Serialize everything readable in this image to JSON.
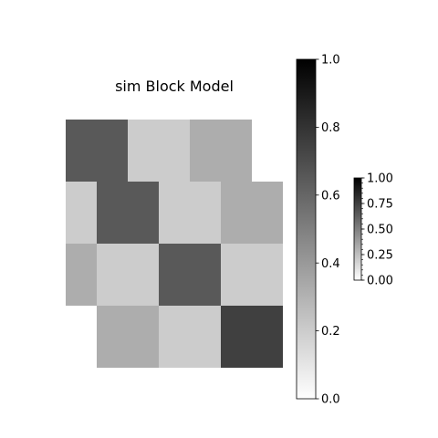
{
  "chart_data": {
    "type": "heatmap",
    "title": "sim Block Model",
    "xlabel": "",
    "ylabel": "",
    "grid": false,
    "colormap": "Greys",
    "color_range": [
      0,
      1
    ],
    "column_blocks": [
      2,
      2,
      2,
      1
    ],
    "row_blocks": [
      2,
      2,
      2,
      2
    ],
    "cells": [
      [
        0.65,
        0.2,
        0.32,
        0.0
      ],
      [
        0.65,
        0.65,
        0.2,
        0.32
      ],
      [
        0.2,
        0.65,
        0.2,
        0.32
      ],
      [
        0.2,
        0.2,
        0.65,
        0.2
      ],
      [
        0.32,
        0.2,
        0.65,
        0.2
      ],
      [
        0.32,
        0.32,
        0.2,
        0.75
      ],
      [
        0.0,
        0.32,
        0.2,
        0.75
      ]
    ],
    "colorbars": [
      {
        "ticks": [
          "0.0",
          "0.2",
          "0.4",
          "0.6",
          "0.8",
          "1.0"
        ],
        "tick_values": [
          0,
          0.2,
          0.4,
          0.6,
          0.8,
          1.0
        ]
      },
      {
        "ticks": [
          "0.00",
          "0.25",
          "0.50",
          "0.75",
          "1.00"
        ],
        "tick_values": [
          0,
          0.25,
          0.5,
          0.75,
          1.0
        ]
      }
    ]
  }
}
